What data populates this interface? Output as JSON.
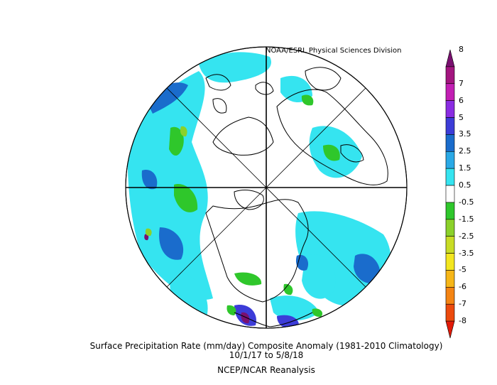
{
  "credit": "NOAA/ESRL Physical Sciences Division",
  "title": "Surface Precipitation Rate (mm/day) Composite Anomaly (1981-2010 Climatology)",
  "dates": "10/1/17  to 5/8/18",
  "source": "NCEP/NCAR Reanalysis",
  "colorbar": {
    "labels": [
      "8",
      "7",
      "6",
      "5",
      "3.5",
      "2.5",
      "1.5",
      "0.5",
      "-0.5",
      "-1.5",
      "-2.5",
      "-3.5",
      "-5",
      "-6",
      "-7",
      "-8"
    ],
    "colors": [
      "#7a1070",
      "#a3157f",
      "#c21fb3",
      "#8a2ce2",
      "#3c3cd8",
      "#1a6ccc",
      "#2aa9e6",
      "#35e4f0",
      "#ffffff",
      "#2fc72b",
      "#8bd12a",
      "#c8dc25",
      "#f3e61f",
      "#f6b618",
      "#f48413",
      "#ec4a0d",
      "#e21a08"
    ]
  },
  "legend": {
    "colors": {
      "land_lines": "#000000",
      "wet": "#35e4f0",
      "wetter": "#1a6ccc",
      "very_wet": "#3c3cd8",
      "extreme_wet": "#7a1070",
      "dry": "#2fc72b",
      "drier": "#8bd12a"
    }
  }
}
